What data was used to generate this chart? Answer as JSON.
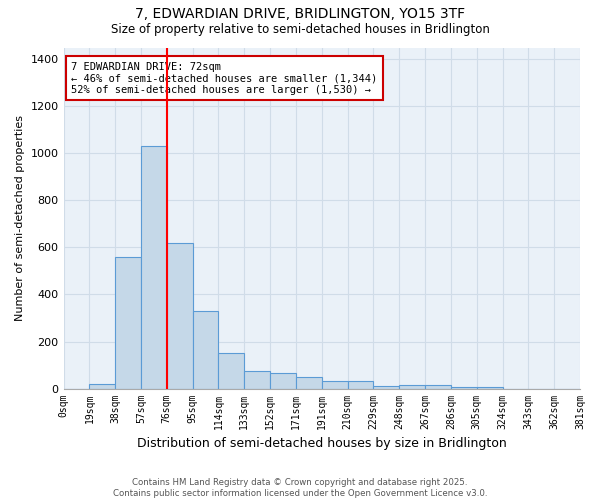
{
  "title1": "7, EDWARDIAN DRIVE, BRIDLINGTON, YO15 3TF",
  "title2": "Size of property relative to semi-detached houses in Bridlington",
  "xlabel": "Distribution of semi-detached houses by size in Bridlington",
  "ylabel": "Number of semi-detached properties",
  "footnote1": "Contains HM Land Registry data © Crown copyright and database right 2025.",
  "footnote2": "Contains public sector information licensed under the Open Government Licence v3.0.",
  "bin_labels": [
    "0sqm",
    "19sqm",
    "38sqm",
    "57sqm",
    "76sqm",
    "95sqm",
    "114sqm",
    "133sqm",
    "152sqm",
    "171sqm",
    "191sqm",
    "210sqm",
    "229sqm",
    "248sqm",
    "267sqm",
    "286sqm",
    "305sqm",
    "324sqm",
    "343sqm",
    "362sqm",
    "381sqm"
  ],
  "bar_values": [
    0,
    20,
    560,
    1030,
    620,
    330,
    150,
    75,
    65,
    50,
    30,
    30,
    10,
    15,
    15,
    5,
    5,
    0,
    0,
    0,
    0
  ],
  "bar_color": "#c5d8e8",
  "bar_edge_color": "#5b9bd5",
  "red_line_bin": 3,
  "property_size": 72,
  "pct_smaller": 46,
  "n_smaller": 1344,
  "pct_larger": 52,
  "n_larger": 1530,
  "annotation_box_color": "#ffffff",
  "annotation_box_edge": "#cc0000",
  "ylim": [
    0,
    1450
  ],
  "yticks": [
    0,
    200,
    400,
    600,
    800,
    1000,
    1200,
    1400
  ],
  "grid_color": "#d0dce8",
  "background_color": "#eaf1f8"
}
